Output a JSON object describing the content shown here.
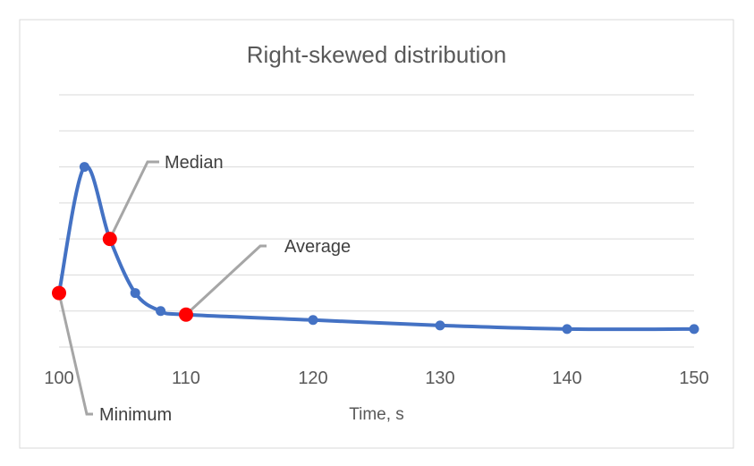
{
  "chart_data": {
    "type": "line",
    "title": "Right-skewed distribution",
    "xlabel": "Time, s",
    "ylabel": "",
    "xlim": [
      100,
      150
    ],
    "ylim": [
      0,
      7
    ],
    "x_ticks": [
      100,
      110,
      120,
      130,
      140,
      150
    ],
    "grid": true,
    "legend": "none",
    "series": [
      {
        "x": [
          100,
          102,
          104,
          106,
          108,
          110,
          120,
          130,
          140,
          150
        ],
        "values": [
          1.5,
          5.0,
          3.0,
          1.5,
          1.0,
          0.9,
          0.75,
          0.6,
          0.5,
          0.5
        ]
      }
    ],
    "annotations": [
      {
        "label": "Median",
        "x": 104,
        "y": 3.0
      },
      {
        "label": "Average",
        "x": 110,
        "y": 0.9
      },
      {
        "label": "Minimum",
        "x": 100,
        "y": 1.5
      }
    ],
    "colors": {
      "line": "#4472C4",
      "marker": "#FF0000",
      "grid": "#D9D9D9",
      "leader": "#A6A6A6",
      "border": "#D9D9D9"
    }
  }
}
